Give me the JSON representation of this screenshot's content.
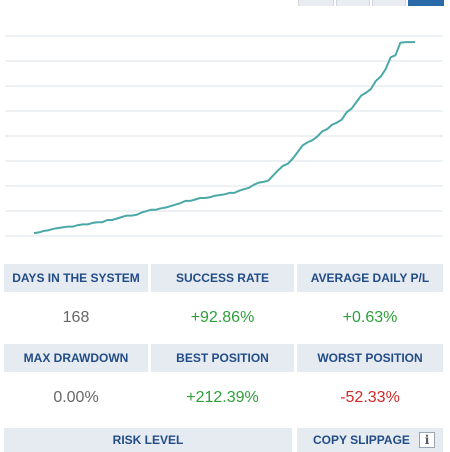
{
  "stats_headers": {
    "days": "DAYS IN THE SYSTEM",
    "success": "SUCCESS RATE",
    "avg_pl": "AVERAGE DAILY P/L",
    "max_dd": "MAX DRAWDOWN",
    "best": "BEST POSITION",
    "worst": "WORST POSITION",
    "risk": "RISK LEVEL",
    "copy_slippage": "COPY SLIPPAGE"
  },
  "stats_values": {
    "days": "168",
    "success": "+92.86%",
    "avg_pl": "+0.63%",
    "max_dd": "0.00%",
    "best": "+212.39%",
    "worst": "-52.33%"
  },
  "info_icon": {
    "name": "info-icon",
    "glyph": "i"
  },
  "colors": {
    "line": "#4aa9a6",
    "grid": "#dde3ea",
    "header_bg": "#e6ebf1",
    "header_text": "#224c86",
    "positive": "#2e9f3a",
    "negative": "#d02a2a",
    "neutral": "#666666"
  },
  "chart_data": {
    "type": "line",
    "title": "",
    "xlabel": "",
    "ylabel": "",
    "grid": true,
    "x": [
      0,
      1,
      2,
      3,
      4,
      5,
      6,
      7,
      8,
      9,
      10,
      11,
      12,
      13,
      14,
      15,
      16,
      17,
      18,
      19,
      20,
      21,
      22,
      23,
      24,
      25,
      26,
      27,
      28,
      29,
      30,
      31,
      32,
      33,
      34,
      35,
      36,
      37,
      38,
      39,
      40,
      41,
      42,
      43,
      44,
      45,
      46,
      47,
      48,
      49,
      50,
      51,
      52,
      53,
      54,
      55,
      56,
      57,
      58,
      59,
      60,
      61,
      62,
      63,
      64,
      65,
      66,
      67,
      68,
      69,
      70,
      71,
      72,
      73,
      74,
      75,
      76,
      77,
      78
    ],
    "values": [
      0.8,
      0.9,
      1.1,
      1.2,
      1.4,
      1.5,
      1.6,
      1.7,
      1.7,
      1.9,
      2.0,
      2.0,
      2.2,
      2.3,
      2.3,
      2.6,
      2.6,
      2.8,
      3.0,
      3.2,
      3.2,
      3.3,
      3.6,
      3.8,
      4.0,
      4.0,
      4.2,
      4.3,
      4.5,
      4.7,
      4.9,
      5.2,
      5.2,
      5.4,
      5.6,
      5.6,
      5.7,
      5.9,
      6.0,
      6.1,
      6.3,
      6.3,
      6.6,
      6.8,
      7.0,
      7.4,
      7.7,
      7.8,
      8.0,
      8.7,
      9.4,
      10.0,
      10.3,
      11.0,
      11.9,
      12.8,
      13.2,
      13.5,
      14.0,
      14.7,
      15.0,
      15.6,
      15.9,
      16.3,
      17.3,
      17.8,
      18.7,
      19.6,
      20.0,
      20.5,
      21.6,
      22.2,
      23.2,
      24.8,
      25.1,
      26.8,
      26.9,
      26.9,
      26.9
    ],
    "ylim": [
      0,
      28
    ]
  }
}
